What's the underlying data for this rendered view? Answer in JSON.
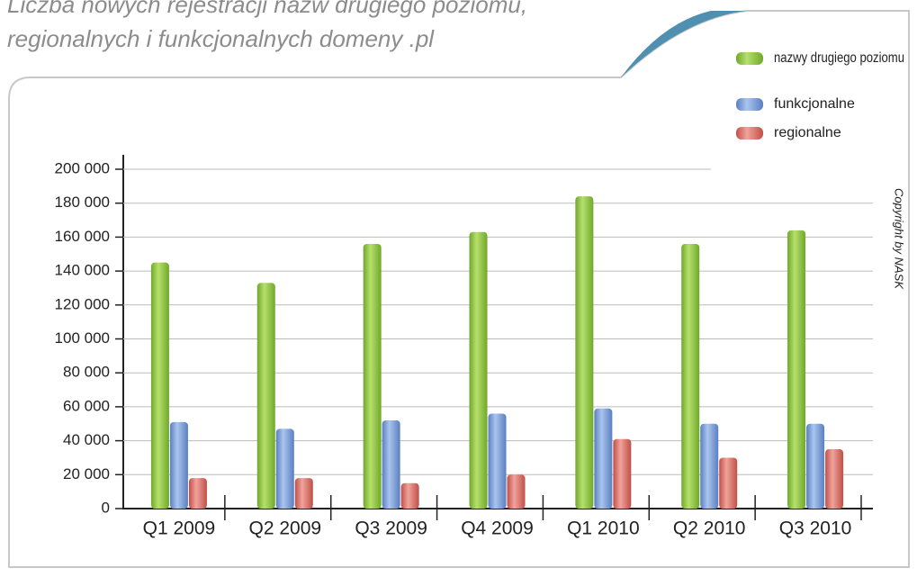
{
  "chart_data": {
    "type": "bar",
    "title": [
      "Liczba nowych rejestracji nazw drugiego poziomu,",
      "regionalnych i funkcjonalnych domeny .pl"
    ],
    "note": "Copyright by NASK",
    "categories": [
      "Q1 2009",
      "Q2 2009",
      "Q3 2009",
      "Q4 2009",
      "Q1 2010",
      "Q2 2010",
      "Q3 2010"
    ],
    "series": [
      {
        "name": "nazwy drugiego poziomu",
        "color": "#8cc43c",
        "values": [
          145000,
          133000,
          156000,
          163000,
          184000,
          156000,
          164000
        ]
      },
      {
        "name": "funkcjonalne",
        "color": "#7d9fd6",
        "values": [
          51000,
          47000,
          52000,
          56000,
          59000,
          50000,
          50000
        ]
      },
      {
        "name": "regionalne",
        "color": "#d9736b",
        "values": [
          18000,
          18000,
          15000,
          20000,
          41000,
          30000,
          35000
        ]
      }
    ],
    "ylim": [
      0,
      200000
    ],
    "yticks": [
      0,
      {
        "value": 20000,
        "label": "20 000"
      },
      {
        "value": 40000,
        "label": "40 000"
      },
      {
        "value": 60000,
        "label": "60 000"
      },
      {
        "value": 80000,
        "label": "80 000"
      },
      {
        "value": 100000,
        "label": "100 000"
      },
      {
        "value": 120000,
        "label": "120 000"
      },
      {
        "value": 140000,
        "label": "140 000"
      },
      {
        "value": 160000,
        "label": "160 000"
      },
      {
        "value": 180000,
        "label": "180 000"
      },
      {
        "value": 200000,
        "label": "200 000"
      }
    ],
    "grid": true
  }
}
